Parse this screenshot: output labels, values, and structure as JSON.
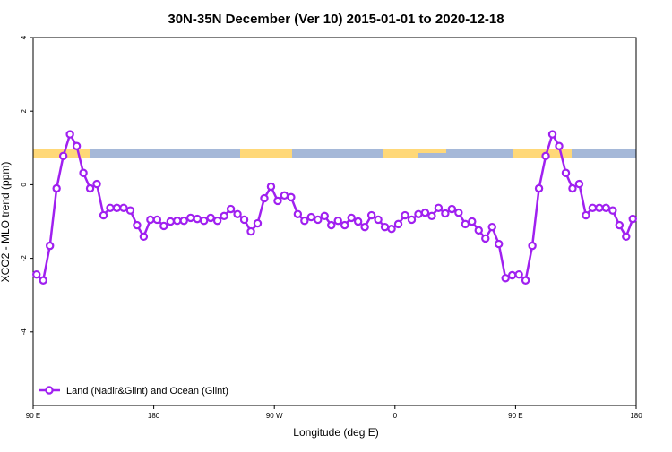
{
  "chart_data": {
    "type": "line",
    "title": "30N-35N December (Ver 10)   2015-01-01 to 2020-12-18",
    "x_label": "Longitude (deg E)",
    "y_label": "XCO2 - MLO trend (ppm)",
    "xlim": [
      90,
      540
    ],
    "xticks": [
      {
        "value": 90,
        "label": "90 E"
      },
      180,
      {
        "value": 270,
        "label": "90 W"
      },
      {
        "value": 360,
        "label": "0"
      },
      {
        "value": 450,
        "label": "90 E"
      },
      {
        "value": 540,
        "label": "180"
      }
    ],
    "ylim": [
      -6,
      4
    ],
    "yticks": [
      -4,
      -2,
      0,
      2,
      4
    ],
    "legend": "bottom-left",
    "x": [
      92.5,
      97.5,
      102.5,
      107.5,
      112.5,
      117.5,
      122.5,
      127.5,
      132.5,
      137.5,
      142.5,
      147.5,
      152.5,
      157.5,
      162.5,
      167.5,
      172.5,
      177.5,
      182.5,
      187.5,
      192.5,
      197.5,
      202.5,
      207.5,
      212.5,
      217.5,
      222.5,
      227.5,
      232.5,
      237.5,
      242.5,
      247.5,
      252.5,
      257.5,
      262.5,
      267.5,
      272.5,
      277.5,
      282.5,
      287.5,
      292.5,
      297.5,
      302.5,
      307.5,
      312.5,
      317.5,
      322.5,
      327.5,
      332.5,
      337.5,
      342.5,
      347.5,
      352.5,
      357.5,
      362.5,
      367.5,
      372.5,
      377.5,
      382.5,
      387.5,
      392.5,
      397.5,
      402.5,
      407.5,
      412.5,
      417.5,
      422.5,
      427.5,
      432.5,
      437.5,
      442.5,
      447.5,
      452.5,
      457.5,
      462.5,
      467.5,
      472.5,
      477.5,
      482.5,
      487.5,
      492.5,
      497.5,
      502.5,
      507.5,
      512.5,
      517.5,
      522.5,
      527.5,
      532.5,
      537.5
    ],
    "series": [
      {
        "name": "Land (Nadir&Glint) and Ocean (Glint)",
        "color": "#a020f0",
        "values": [
          -2.44,
          -2.6,
          -1.66,
          -0.1,
          0.78,
          1.37,
          1.05,
          0.32,
          -0.1,
          0.02,
          -0.83,
          -0.63,
          -0.63,
          -0.63,
          -0.7,
          -1.1,
          -1.41,
          -0.95,
          -0.95,
          -1.12,
          -1.0,
          -0.98,
          -0.98,
          -0.9,
          -0.93,
          -0.98,
          -0.9,
          -0.98,
          -0.85,
          -0.66,
          -0.8,
          -0.95,
          -1.27,
          -1.05,
          -0.37,
          -0.05,
          -0.44,
          -0.29,
          -0.34,
          -0.8,
          -0.98,
          -0.88,
          -0.95,
          -0.85,
          -1.1,
          -0.98,
          -1.1,
          -0.9,
          -1.0,
          -1.15,
          -0.83,
          -0.95,
          -1.15,
          -1.2,
          -1.07,
          -0.83,
          -0.95,
          -0.8,
          -0.76,
          -0.85,
          -0.63,
          -0.78,
          -0.66,
          -0.76,
          -1.07,
          -1.0,
          -1.24,
          -1.46,
          -1.15,
          -1.61,
          -2.54,
          -2.46,
          -2.44,
          -2.6,
          -1.66,
          -0.1,
          0.78,
          1.37,
          1.05,
          0.32,
          -0.1,
          0.02,
          -0.83,
          -0.63,
          -0.63,
          -0.63,
          -0.7,
          -1.1,
          -1.41,
          -0.93
        ]
      }
    ]
  }
}
